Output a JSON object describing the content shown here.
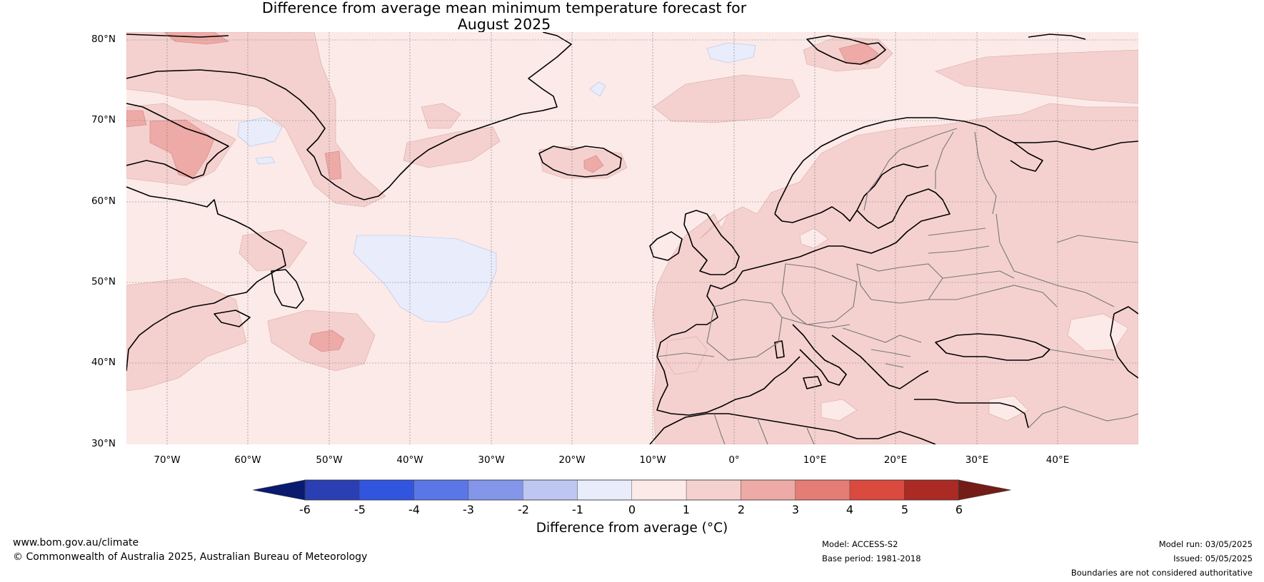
{
  "title": {
    "line1": "Difference from average mean minimum temperature forecast for",
    "line2": "August 2025"
  },
  "axes": {
    "lat_labels": [
      "80°N",
      "70°N",
      "60°N",
      "50°N",
      "40°N",
      "30°N"
    ],
    "lon_labels": [
      "70°W",
      "60°W",
      "50°W",
      "40°W",
      "30°W",
      "20°W",
      "10°W",
      "0°",
      "10°E",
      "20°E",
      "30°E",
      "40°E"
    ]
  },
  "map": {
    "projection": "plate carree",
    "lat_range": [
      30,
      81
    ],
    "lon_range": [
      -75,
      50
    ],
    "gridlines": true
  },
  "colorbar": {
    "title": "Difference from average (°C)",
    "ticks": [
      "-6",
      "-5",
      "-4",
      "-3",
      "-2",
      "-1",
      "0",
      "1",
      "2",
      "3",
      "4",
      "5",
      "6"
    ],
    "extend": "both",
    "colors": [
      "#0a1a6e",
      "#2a3fb3",
      "#3255e0",
      "#5b76e6",
      "#8496ea",
      "#bec7f2",
      "#e8ecfb",
      "#fbeae8",
      "#f4d1cf",
      "#eeaaa6",
      "#e57c75",
      "#da4a3e",
      "#ab2a24",
      "#741c17"
    ]
  },
  "footer": {
    "website": "www.bom.gov.au/climate",
    "copyright": "© Commonwealth of Australia 2025, Australian Bureau of Meteorology",
    "model": "Model: ACCESS-S2",
    "base_period": "Base period: 1981-2018",
    "model_run": "Model run: 03/05/2025",
    "issued": "Issued: 05/05/2025",
    "disclaimer": "Boundaries are not considered authoritative"
  }
}
